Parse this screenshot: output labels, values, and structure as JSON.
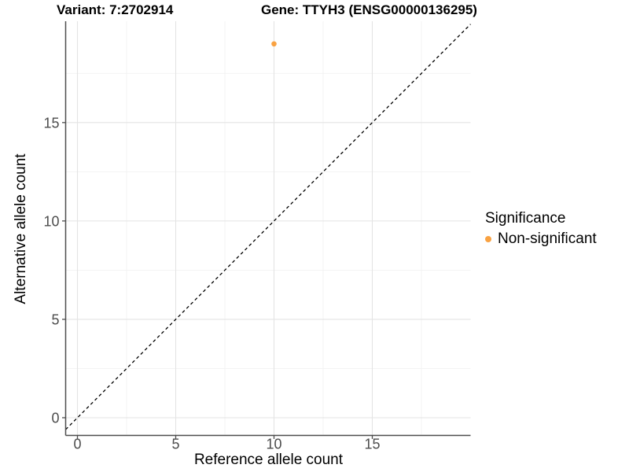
{
  "chart_data": {
    "type": "scatter",
    "titles": {
      "left": "Variant: 7:2702914",
      "right": "Gene: TTYH3 (ENSG00000136295)"
    },
    "xlabel": "Reference allele count",
    "ylabel": "Alternative allele count",
    "xlim": [
      -0.6,
      20
    ],
    "ylim": [
      -0.9,
      20.15
    ],
    "xticks": [
      0,
      5,
      10,
      15
    ],
    "yticks": [
      0,
      5,
      10,
      15
    ],
    "minor_xticks": [
      2.5,
      7.5,
      12.5,
      17.5
    ],
    "minor_yticks": [
      2.5,
      7.5,
      12.5,
      17.5
    ],
    "grid": "major and minor gridlines on white panel",
    "identity_line": {
      "slope": 1,
      "intercept": 0,
      "style": "dashed",
      "color": "#000000"
    },
    "series": [
      {
        "name": "Non-significant",
        "color": "#F9A242",
        "points": [
          {
            "x": 10,
            "y": 19
          }
        ]
      }
    ],
    "legend": {
      "title": "Significance",
      "position": "right",
      "items": [
        {
          "label": "Non-significant",
          "color": "#F9A242"
        }
      ]
    },
    "colors": {
      "background": "#FFFFFF",
      "grid_major": "#E4E4E4",
      "grid_minor": "#F2F2F2",
      "axis_line": "#4D4D4D",
      "tick_text": "#4D4D4D",
      "title_text": "#000000"
    }
  }
}
